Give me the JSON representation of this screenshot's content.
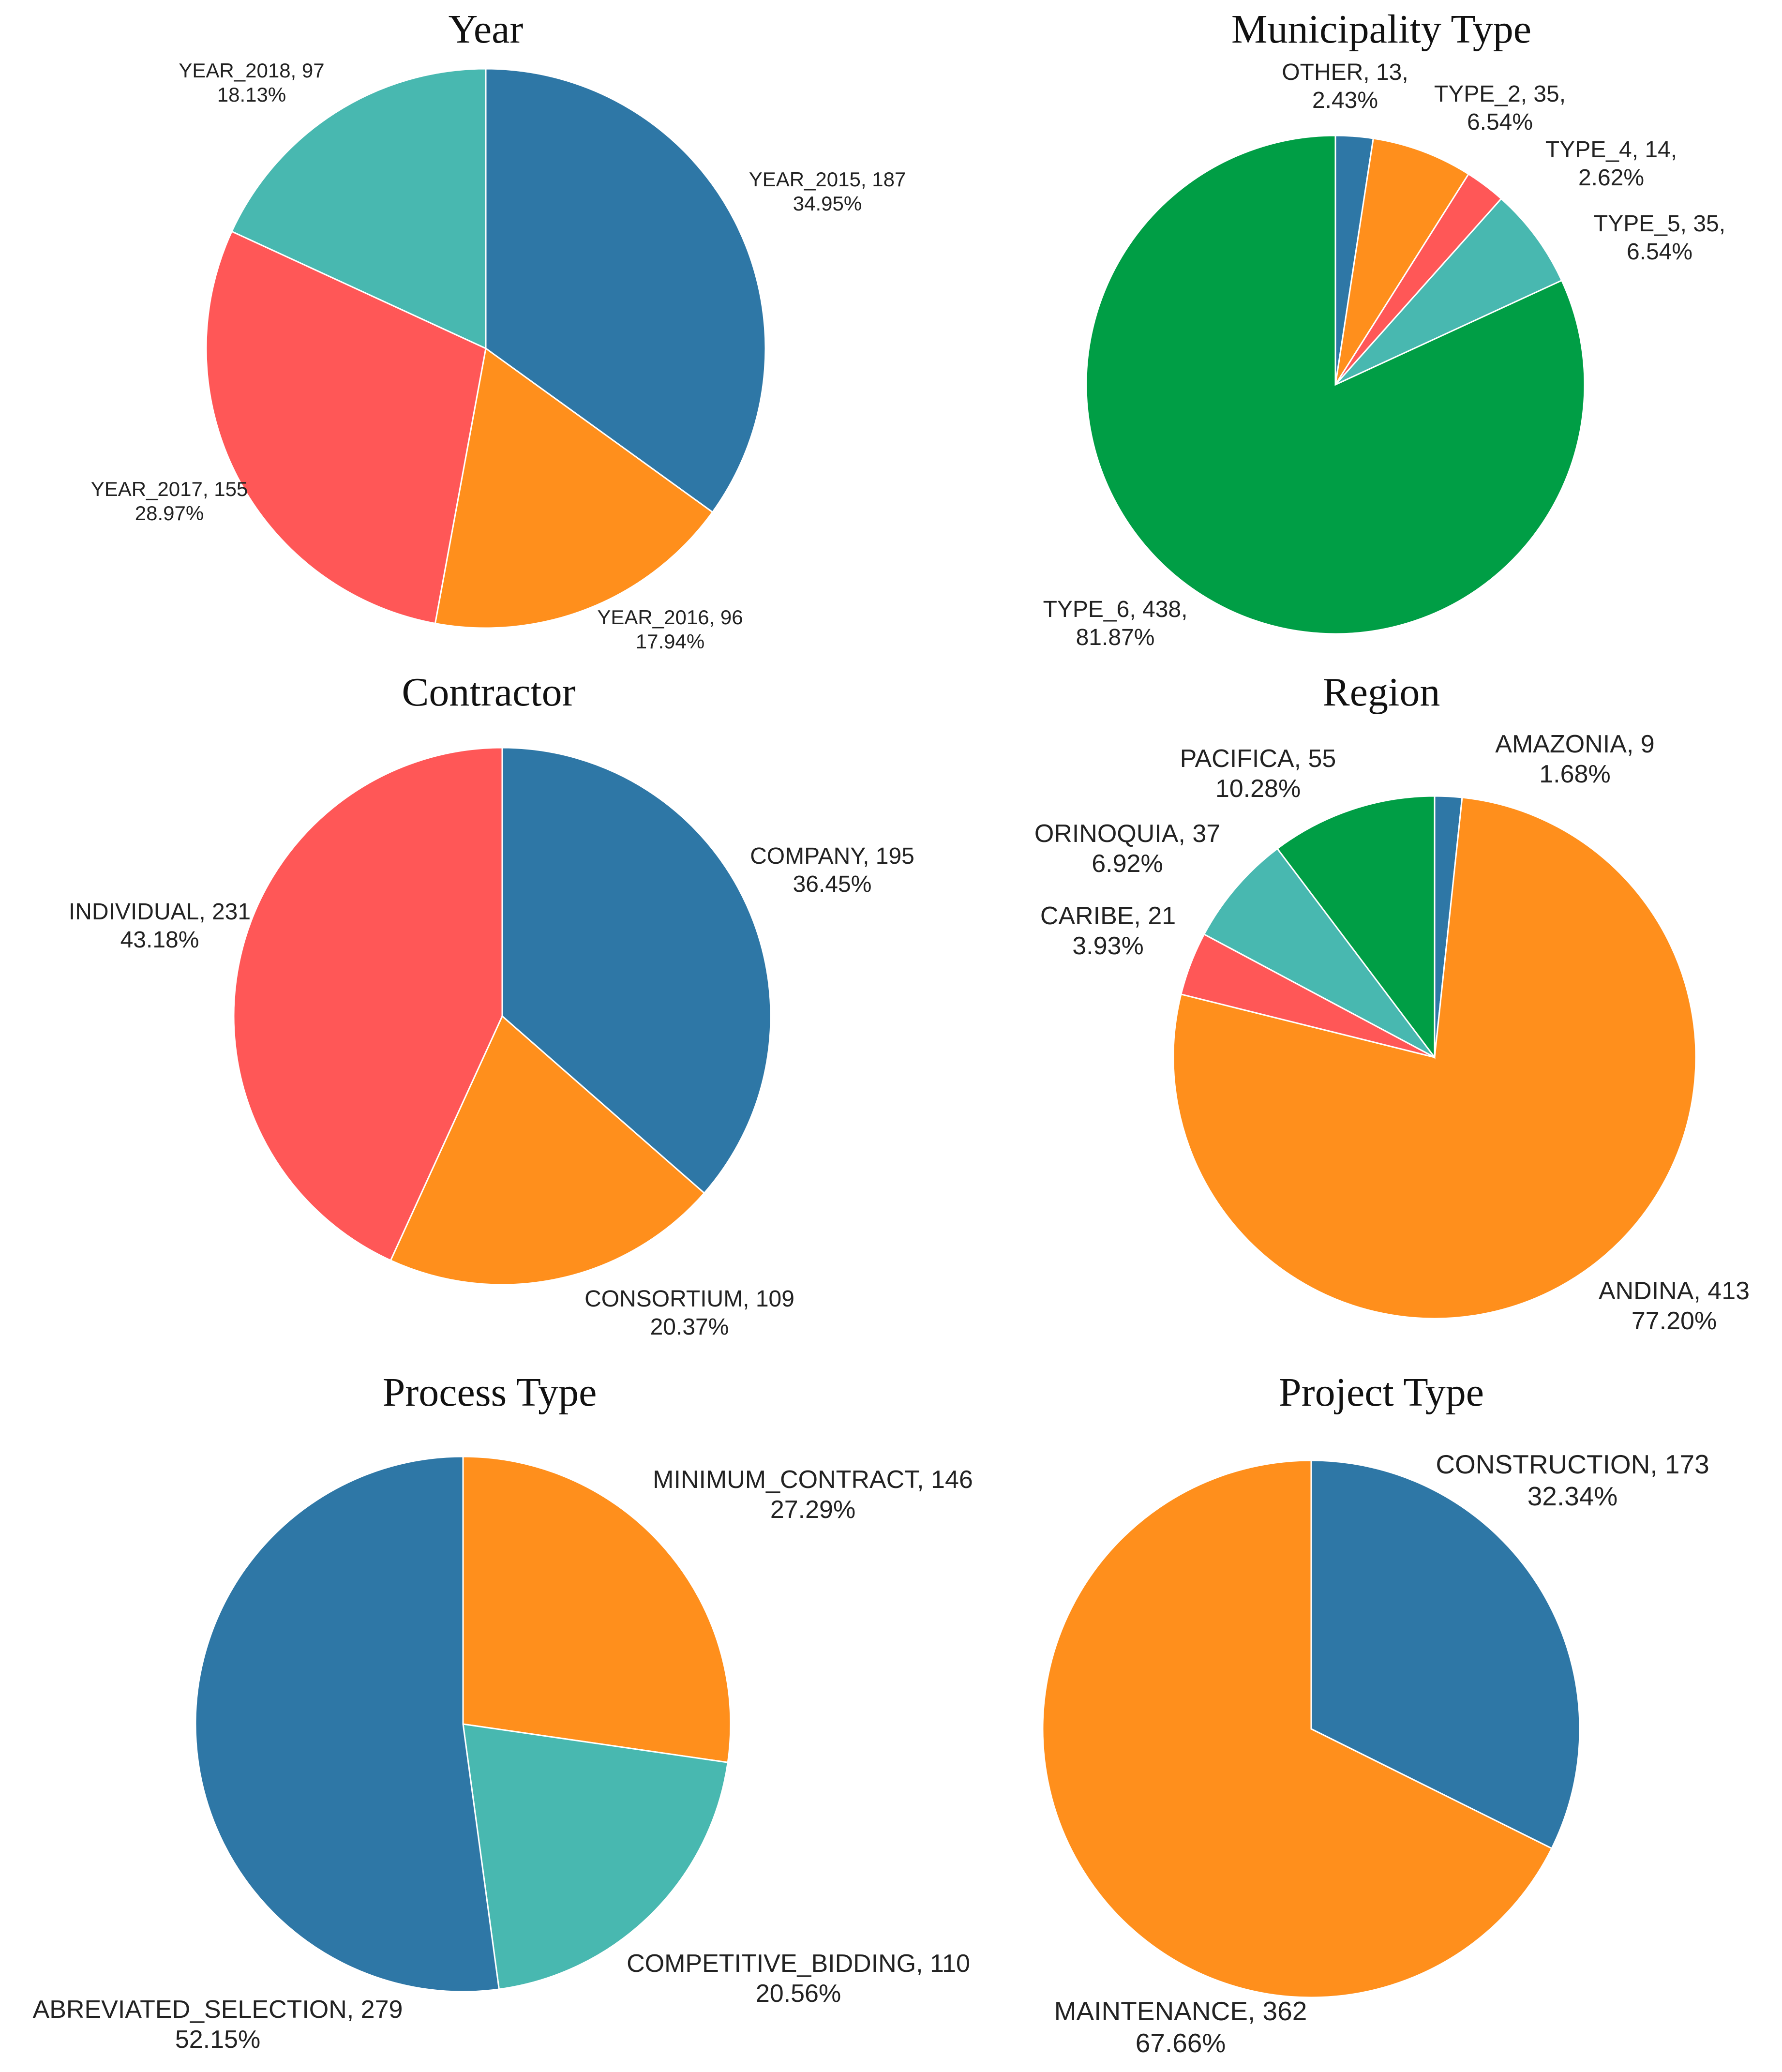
{
  "chart_data": [
    {
      "type": "pie",
      "title": "Year",
      "slices": [
        {
          "name": "YEAR_2015",
          "value": 187,
          "percent": "34.95%",
          "label": "YEAR_2015, 187",
          "color": "#2E77A6"
        },
        {
          "name": "YEAR_2016",
          "value": 96,
          "percent": "17.94%",
          "label": "YEAR_2016, 96",
          "color": "#FF8F1C"
        },
        {
          "name": "YEAR_2017",
          "value": 155,
          "percent": "28.97%",
          "label": "YEAR_2017, 155",
          "color": "#FF5757"
        },
        {
          "name": "YEAR_2018",
          "value": 97,
          "percent": "18.13%",
          "label": "YEAR_2018, 97",
          "color": "#48B8B0"
        }
      ]
    },
    {
      "type": "pie",
      "title": "Municipality Type",
      "slices": [
        {
          "name": "OTHER",
          "value": 13,
          "percent": "2.43%",
          "label": "OTHER,  13,",
          "color": "#2E77A6"
        },
        {
          "name": "TYPE_2",
          "value": 35,
          "percent": "6.54%",
          "label": "TYPE_2,  35,",
          "color": "#FF8F1C"
        },
        {
          "name": "TYPE_4",
          "value": 14,
          "percent": "2.62%",
          "label": "TYPE_4,  14,",
          "color": "#FF5757"
        },
        {
          "name": "TYPE_5",
          "value": 35,
          "percent": "6.54%",
          "label": "TYPE_5,  35,",
          "color": "#48B8B0"
        },
        {
          "name": "TYPE_6",
          "value": 438,
          "percent": "81.87%",
          "label": "TYPE_6,  438,",
          "color": "#009E45"
        }
      ]
    },
    {
      "type": "pie",
      "title": "Contractor",
      "slices": [
        {
          "name": "COMPANY",
          "value": 195,
          "percent": "36.45%",
          "label": "COMPANY,  195",
          "color": "#2E77A6"
        },
        {
          "name": "CONSORTIUM",
          "value": 109,
          "percent": "20.37%",
          "label": "CONSORTIUM,  109",
          "color": "#FF8F1C"
        },
        {
          "name": "INDIVIDUAL",
          "value": 231,
          "percent": "43.18%",
          "label": "INDIVIDUAL,  231",
          "color": "#FF5757"
        }
      ]
    },
    {
      "type": "pie",
      "title": "Region",
      "slices": [
        {
          "name": "AMAZONIA",
          "value": 9,
          "percent": "1.68%",
          "label": "AMAZONIA, 9",
          "color": "#2E77A6"
        },
        {
          "name": "ANDINA",
          "value": 413,
          "percent": "77.20%",
          "label": "ANDINA, 413",
          "color": "#FF8F1C"
        },
        {
          "name": "CARIBE",
          "value": 21,
          "percent": "3.93%",
          "label": "CARIBE, 21",
          "color": "#FF5757"
        },
        {
          "name": "ORINOQUIA",
          "value": 37,
          "percent": "6.92%",
          "label": "ORINOQUIA, 37",
          "color": "#48B8B0"
        },
        {
          "name": "PACIFICA",
          "value": 55,
          "percent": "10.28%",
          "label": "PACIFICA, 55",
          "color": "#009E45"
        }
      ]
    },
    {
      "type": "pie",
      "title": "Process Type",
      "slices": [
        {
          "name": "MINIMUM_CONTRACT",
          "value": 146,
          "percent": "27.29%",
          "label": "MINIMUM_CONTRACT, 146",
          "color": "#FF8F1C"
        },
        {
          "name": "COMPETITIVE_BIDDING",
          "value": 110,
          "percent": "20.56%",
          "label": "COMPETITIVE_BIDDING, 110",
          "color": "#48B8B0"
        },
        {
          "name": "ABREVIATED_SELECTION",
          "value": 279,
          "percent": "52.15%",
          "label": "ABREVIATED_SELECTION, 279",
          "color": "#2E77A6"
        }
      ]
    },
    {
      "type": "pie",
      "title": "Project Type",
      "slices": [
        {
          "name": "CONSTRUCTION",
          "value": 173,
          "percent": "32.34%",
          "label": "CONSTRUCTION, 173",
          "color": "#2E77A6"
        },
        {
          "name": "MAINTENANCE",
          "value": 362,
          "percent": "67.66%",
          "label": "MAINTENANCE, 362",
          "color": "#FF8F1C"
        }
      ]
    }
  ]
}
